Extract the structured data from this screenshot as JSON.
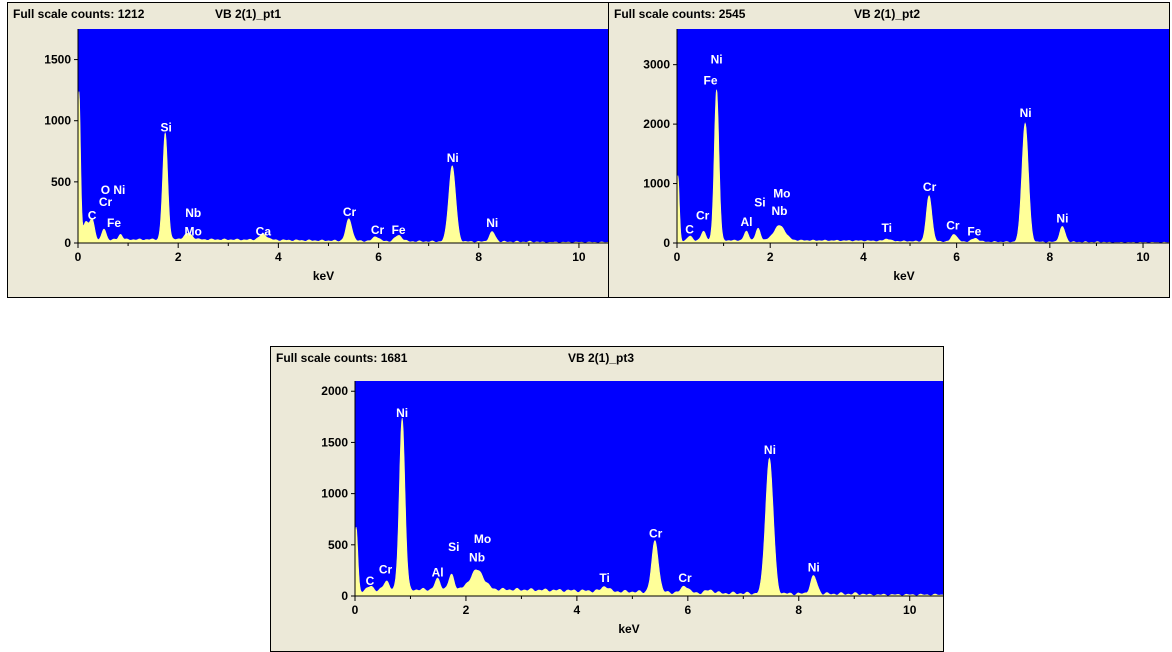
{
  "chart_data": [
    {
      "type": "line",
      "header": {
        "counts_label": "Full scale counts: 1212",
        "title": "VB 2(1)_pt1"
      },
      "xlabel": "keV",
      "xlim": [
        0,
        10.6
      ],
      "ylim": [
        0,
        1750
      ],
      "x_ticks": [
        "0",
        "2",
        "4",
        "6",
        "8",
        "10"
      ],
      "y_ticks": [
        "0",
        "500",
        "1000",
        "1500"
      ],
      "background": "#0000ff",
      "series_color": "#ffff99",
      "baseline": 20,
      "peaks": [
        [
          0.02,
          1210,
          0.03
        ],
        [
          0.15,
          150,
          0.05
        ],
        [
          0.28,
          170,
          0.05
        ],
        [
          0.52,
          90,
          0.04
        ],
        [
          0.85,
          45,
          0.04
        ],
        [
          1.74,
          870,
          0.05
        ],
        [
          2.2,
          50,
          0.08
        ],
        [
          3.7,
          45,
          0.08
        ],
        [
          5.41,
          180,
          0.06
        ],
        [
          5.95,
          40,
          0.06
        ],
        [
          6.4,
          50,
          0.07
        ],
        [
          7.47,
          620,
          0.07
        ],
        [
          8.27,
          80,
          0.06
        ]
      ],
      "annotations": [
        {
          "text": "O Ni",
          "x": 0.7,
          "y": 370
        },
        {
          "text": "Cr",
          "x": 0.55,
          "y": 270
        },
        {
          "text": "C",
          "x": 0.28,
          "y": 160
        },
        {
          "text": "Fe",
          "x": 0.72,
          "y": 100
        },
        {
          "text": "Si",
          "x": 1.76,
          "y": 880
        },
        {
          "text": "Nb",
          "x": 2.3,
          "y": 180
        },
        {
          "text": "Mo",
          "x": 2.3,
          "y": 30
        },
        {
          "text": "Ca",
          "x": 3.7,
          "y": 30
        },
        {
          "text": "Cr",
          "x": 5.42,
          "y": 190
        },
        {
          "text": "Cr",
          "x": 5.98,
          "y": 40
        },
        {
          "text": "Fe",
          "x": 6.4,
          "y": 40
        },
        {
          "text": "Ni",
          "x": 7.48,
          "y": 630
        },
        {
          "text": "Ni",
          "x": 8.27,
          "y": 100
        }
      ]
    },
    {
      "type": "line",
      "header": {
        "counts_label": "Full scale counts: 2545",
        "title": "VB 2(1)_pt2"
      },
      "xlabel": "keV",
      "xlim": [
        0,
        10.6
      ],
      "ylim": [
        0,
        3600
      ],
      "x_ticks": [
        "0",
        "2",
        "4",
        "6",
        "8",
        "10"
      ],
      "y_ticks": [
        "0",
        "1000",
        "2000",
        "3000"
      ],
      "background": "#0000ff",
      "series_color": "#ffff99",
      "baseline": 30,
      "peaks": [
        [
          0.02,
          1100,
          0.03
        ],
        [
          0.28,
          80,
          0.05
        ],
        [
          0.57,
          160,
          0.05
        ],
        [
          0.85,
          2540,
          0.05
        ],
        [
          1.49,
          150,
          0.05
        ],
        [
          1.74,
          200,
          0.05
        ],
        [
          2.2,
          250,
          0.12
        ],
        [
          4.51,
          40,
          0.06
        ],
        [
          5.41,
          770,
          0.06
        ],
        [
          5.95,
          130,
          0.06
        ],
        [
          6.4,
          60,
          0.07
        ],
        [
          7.47,
          2000,
          0.07
        ],
        [
          8.27,
          260,
          0.06
        ]
      ],
      "annotations": [
        {
          "text": "Ni",
          "x": 0.85,
          "y": 2950
        },
        {
          "text": "Fe",
          "x": 0.72,
          "y": 2600
        },
        {
          "text": "C",
          "x": 0.27,
          "y": 90
        },
        {
          "text": "Cr",
          "x": 0.55,
          "y": 330
        },
        {
          "text": "Al",
          "x": 1.49,
          "y": 220
        },
        {
          "text": "Si",
          "x": 1.78,
          "y": 550
        },
        {
          "text": "Mo",
          "x": 2.25,
          "y": 700
        },
        {
          "text": "Nb",
          "x": 2.2,
          "y": 400
        },
        {
          "text": "Ti",
          "x": 4.5,
          "y": 120
        },
        {
          "text": "Cr",
          "x": 5.42,
          "y": 810
        },
        {
          "text": "Cr",
          "x": 5.92,
          "y": 160
        },
        {
          "text": "Fe",
          "x": 6.38,
          "y": 60
        },
        {
          "text": "Ni",
          "x": 7.48,
          "y": 2050
        },
        {
          "text": "Ni",
          "x": 8.27,
          "y": 280
        }
      ]
    },
    {
      "type": "line",
      "header": {
        "counts_label": "Full scale counts: 1681",
        "title": "VB 2(1)_pt3"
      },
      "xlabel": "keV",
      "xlim": [
        0,
        10.6
      ],
      "ylim": [
        0,
        2100
      ],
      "x_ticks": [
        "0",
        "2",
        "4",
        "6",
        "8",
        "10"
      ],
      "y_ticks": [
        "0",
        "500",
        "1000",
        "1500",
        "2000"
      ],
      "background": "#0000ff",
      "series_color": "#ffff99",
      "baseline": 45,
      "peaks": [
        [
          0.02,
          620,
          0.03
        ],
        [
          0.28,
          40,
          0.05
        ],
        [
          0.57,
          90,
          0.05
        ],
        [
          0.85,
          1680,
          0.05
        ],
        [
          1.49,
          100,
          0.05
        ],
        [
          1.74,
          140,
          0.05
        ],
        [
          2.2,
          190,
          0.12
        ],
        [
          4.51,
          50,
          0.06
        ],
        [
          5.41,
          500,
          0.06
        ],
        [
          5.95,
          70,
          0.06
        ],
        [
          6.4,
          30,
          0.07
        ],
        [
          7.47,
          1320,
          0.07
        ],
        [
          8.27,
          170,
          0.06
        ]
      ],
      "annotations": [
        {
          "text": "Ni",
          "x": 0.85,
          "y": 1710
        },
        {
          "text": "C",
          "x": 0.27,
          "y": 70
        },
        {
          "text": "Cr",
          "x": 0.55,
          "y": 180
        },
        {
          "text": "Al",
          "x": 1.49,
          "y": 150
        },
        {
          "text": "Si",
          "x": 1.78,
          "y": 400
        },
        {
          "text": "Mo",
          "x": 2.3,
          "y": 480
        },
        {
          "text": "Nb",
          "x": 2.2,
          "y": 300
        },
        {
          "text": "Ti",
          "x": 4.5,
          "y": 100
        },
        {
          "text": "Cr",
          "x": 5.42,
          "y": 530
        },
        {
          "text": "Cr",
          "x": 5.95,
          "y": 100
        },
        {
          "text": "Ni",
          "x": 7.48,
          "y": 1350
        },
        {
          "text": "Ni",
          "x": 8.27,
          "y": 200
        }
      ]
    }
  ]
}
